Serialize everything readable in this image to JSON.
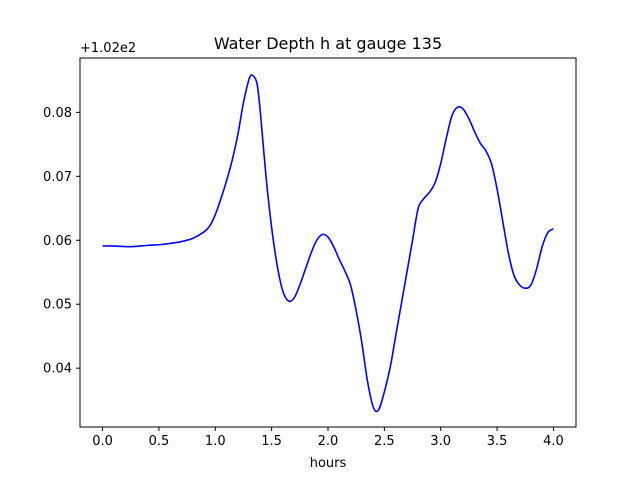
{
  "chart_data": {
    "type": "line",
    "title": "Water Depth h at gauge 135",
    "xlabel": "hours",
    "ylabel": "",
    "y_offset_label": "+1.02e2",
    "xlim": [
      -0.2,
      4.2
    ],
    "ylim": [
      0.0308,
      0.0885
    ],
    "x_ticks": [
      0.0,
      0.5,
      1.0,
      1.5,
      2.0,
      2.5,
      3.0,
      3.5,
      4.0
    ],
    "x_tick_labels": [
      "0.0",
      "0.5",
      "1.0",
      "1.5",
      "2.0",
      "2.5",
      "3.0",
      "3.5",
      "4.0"
    ],
    "y_ticks": [
      0.04,
      0.05,
      0.06,
      0.07,
      0.08
    ],
    "y_tick_labels": [
      "0.04",
      "0.05",
      "0.06",
      "0.07",
      "0.08"
    ],
    "grid": false,
    "series": [
      {
        "color": "#0000ff",
        "x": [
          0.0,
          0.1,
          0.25,
          0.4,
          0.5,
          0.6,
          0.7,
          0.8,
          0.9,
          0.95,
          1.0,
          1.05,
          1.1,
          1.15,
          1.2,
          1.25,
          1.3,
          1.33,
          1.37,
          1.4,
          1.45,
          1.5,
          1.55,
          1.6,
          1.65,
          1.7,
          1.75,
          1.8,
          1.85,
          1.9,
          1.95,
          2.0,
          2.05,
          2.1,
          2.15,
          2.2,
          2.25,
          2.3,
          2.35,
          2.4,
          2.44,
          2.48,
          2.55,
          2.6,
          2.7,
          2.75,
          2.8,
          2.85,
          2.9,
          2.95,
          3.0,
          3.05,
          3.1,
          3.15,
          3.2,
          3.25,
          3.3,
          3.35,
          3.4,
          3.45,
          3.5,
          3.55,
          3.6,
          3.65,
          3.7,
          3.75,
          3.8,
          3.85,
          3.9,
          3.95,
          4.0
        ],
        "y": [
          0.0591,
          0.0591,
          0.059,
          0.0592,
          0.0593,
          0.0595,
          0.0598,
          0.0603,
          0.0613,
          0.0622,
          0.064,
          0.0665,
          0.0693,
          0.0725,
          0.0765,
          0.0815,
          0.0852,
          0.0858,
          0.0845,
          0.08,
          0.07,
          0.062,
          0.056,
          0.052,
          0.0505,
          0.051,
          0.053,
          0.0555,
          0.058,
          0.06,
          0.0609,
          0.0605,
          0.059,
          0.057,
          0.0552,
          0.053,
          0.049,
          0.044,
          0.038,
          0.034,
          0.0333,
          0.035,
          0.04,
          0.045,
          0.055,
          0.06,
          0.065,
          0.0665,
          0.0675,
          0.069,
          0.072,
          0.076,
          0.0795,
          0.0808,
          0.0805,
          0.079,
          0.077,
          0.0752,
          0.074,
          0.072,
          0.068,
          0.063,
          0.058,
          0.0545,
          0.053,
          0.0525,
          0.053,
          0.0555,
          0.059,
          0.0612,
          0.0618
        ]
      }
    ]
  }
}
